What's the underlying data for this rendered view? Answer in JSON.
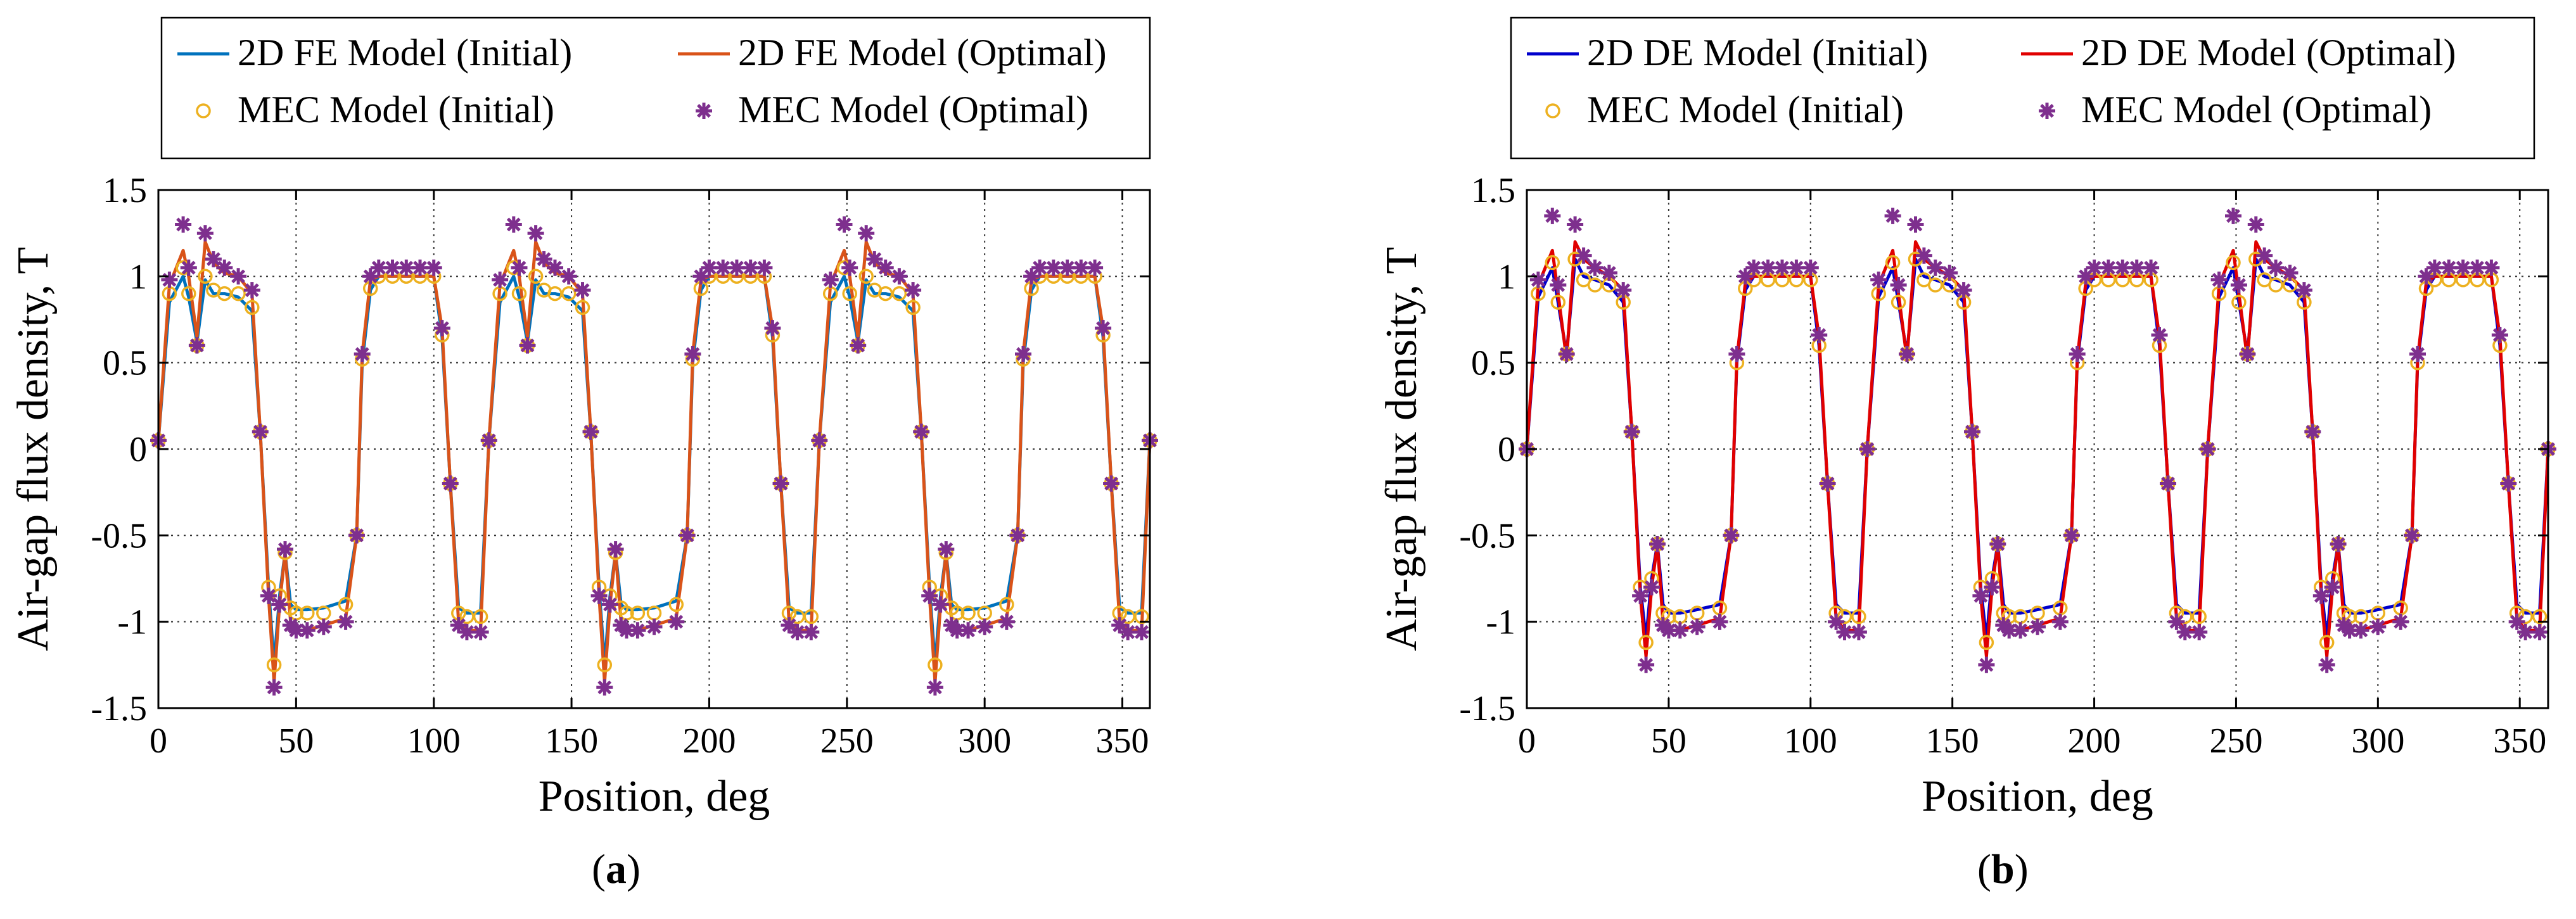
{
  "captions": [
    "a",
    "b"
  ],
  "chart_data": [
    {
      "type": "line",
      "title": "",
      "xlabel": "Position, deg",
      "ylabel": "Air-gap flux density, T",
      "xlim": [
        0,
        360
      ],
      "ylim": [
        -1.5,
        1.5
      ],
      "xticks": [
        0,
        50,
        100,
        150,
        200,
        250,
        300,
        350
      ],
      "yticks": [
        -1.5,
        -1,
        -0.5,
        0,
        0.5,
        1,
        1.5
      ],
      "x_tick_labels": [
        "0",
        "50",
        "100",
        "150",
        "200",
        "250",
        "300",
        "350"
      ],
      "y_tick_labels": [
        "-1.5",
        "-1",
        "-0.5",
        "0",
        "0.5",
        "1",
        "1.5"
      ],
      "grid": "dotted",
      "legend_position": "top",
      "period_deg": 120,
      "x": [
        0,
        4,
        9,
        11,
        14,
        17,
        20,
        24,
        29,
        34,
        37,
        40,
        42,
        44,
        46,
        48,
        50,
        54,
        60,
        68,
        72,
        74,
        77,
        80,
        85,
        90,
        95,
        100,
        103,
        106,
        109,
        112,
        117,
        120
      ],
      "series": [
        {
          "name": "2D FE Model (Initial)",
          "color": "#0072BD",
          "style": "line",
          "values": [
            0.05,
            0.85,
            1.0,
            0.88,
            0.62,
            0.98,
            0.9,
            0.9,
            0.88,
            0.8,
            0.1,
            -0.8,
            -1.25,
            -0.85,
            -0.6,
            -0.9,
            -0.93,
            -0.93,
            -0.92,
            -0.88,
            -0.5,
            0.5,
            0.92,
            1.0,
            1.0,
            1.0,
            1.0,
            1.0,
            0.65,
            -0.2,
            -0.92,
            -0.95,
            -0.95,
            0.05
          ]
        },
        {
          "name": "2D FE Model (Optimal)",
          "color": "#D95319",
          "style": "line",
          "values": [
            0.05,
            0.95,
            1.15,
            1.0,
            0.65,
            1.2,
            1.08,
            1.02,
            1.0,
            0.9,
            0.1,
            -0.85,
            -1.35,
            -0.9,
            -0.6,
            -1.0,
            -1.05,
            -1.05,
            -1.02,
            -0.98,
            -0.5,
            0.55,
            0.98,
            1.0,
            1.0,
            1.0,
            1.0,
            1.0,
            0.7,
            -0.2,
            -1.0,
            -1.05,
            -1.05,
            0.05
          ]
        },
        {
          "name": "MEC Model (Initial)",
          "color": "#EDB120",
          "style": "circle",
          "values": [
            0.05,
            0.9,
            1.05,
            0.9,
            0.6,
            1.0,
            0.92,
            0.9,
            0.9,
            0.82,
            0.1,
            -0.8,
            -1.25,
            -0.85,
            -0.6,
            -0.92,
            -0.95,
            -0.95,
            -0.95,
            -0.9,
            -0.5,
            0.52,
            0.93,
            1.0,
            1.0,
            1.0,
            1.0,
            1.0,
            0.66,
            -0.2,
            -0.95,
            -0.97,
            -0.97,
            0.05
          ]
        },
        {
          "name": "MEC Model (Optimal)",
          "color": "#7E2F8E",
          "style": "star",
          "values": [
            0.05,
            0.98,
            1.3,
            1.05,
            0.6,
            1.25,
            1.1,
            1.05,
            1.0,
            0.92,
            0.1,
            -0.85,
            -1.38,
            -0.9,
            -0.58,
            -1.02,
            -1.05,
            -1.05,
            -1.03,
            -1.0,
            -0.5,
            0.55,
            1.0,
            1.05,
            1.05,
            1.05,
            1.05,
            1.05,
            0.7,
            -0.2,
            -1.02,
            -1.06,
            -1.06,
            0.05
          ]
        }
      ]
    },
    {
      "type": "line",
      "title": "",
      "xlabel": "Position, deg",
      "ylabel": "Air-gap flux density, T",
      "xlim": [
        0,
        360
      ],
      "ylim": [
        -1.5,
        1.5
      ],
      "xticks": [
        0,
        50,
        100,
        150,
        200,
        250,
        300,
        350
      ],
      "yticks": [
        -1.5,
        -1,
        -0.5,
        0,
        0.5,
        1,
        1.5
      ],
      "x_tick_labels": [
        "0",
        "50",
        "100",
        "150",
        "200",
        "250",
        "300",
        "350"
      ],
      "y_tick_labels": [
        "-1.5",
        "-1",
        "-0.5",
        "0",
        "0.5",
        "1",
        "1.5"
      ],
      "grid": "dotted",
      "legend_position": "top",
      "period_deg": 120,
      "x": [
        0,
        4,
        9,
        11,
        14,
        17,
        20,
        24,
        29,
        34,
        37,
        40,
        42,
        44,
        46,
        48,
        50,
        54,
        60,
        68,
        72,
        74,
        77,
        80,
        85,
        90,
        95,
        100,
        103,
        106,
        109,
        112,
        117,
        120
      ],
      "series": [
        {
          "name": "2D DE Model (Initial)",
          "color": "#0000CC",
          "style": "line",
          "values": [
            0.0,
            0.88,
            1.05,
            0.85,
            0.55,
            1.1,
            1.0,
            0.98,
            0.95,
            0.85,
            0.1,
            -0.8,
            -1.1,
            -0.75,
            -0.55,
            -0.9,
            -0.95,
            -0.95,
            -0.93,
            -0.9,
            -0.5,
            0.5,
            0.92,
            1.0,
            1.0,
            1.0,
            1.0,
            1.0,
            0.6,
            -0.2,
            -0.9,
            -0.95,
            -0.95,
            0.0
          ]
        },
        {
          "name": "2D DE Model (Optimal)",
          "color": "#E00000",
          "style": "line",
          "values": [
            0.0,
            0.95,
            1.15,
            0.9,
            0.52,
            1.2,
            1.1,
            1.05,
            1.0,
            0.92,
            0.1,
            -0.85,
            -1.2,
            -0.8,
            -0.55,
            -1.0,
            -1.05,
            -1.05,
            -1.02,
            -0.98,
            -0.5,
            0.52,
            0.96,
            1.0,
            1.0,
            1.0,
            1.0,
            1.0,
            0.65,
            -0.2,
            -0.98,
            -1.05,
            -1.05,
            0.0
          ]
        },
        {
          "name": "MEC Model (Initial)",
          "color": "#EDB120",
          "style": "circle",
          "values": [
            0.0,
            0.9,
            1.08,
            0.85,
            0.55,
            1.1,
            0.98,
            0.95,
            0.95,
            0.85,
            0.1,
            -0.8,
            -1.12,
            -0.75,
            -0.55,
            -0.95,
            -0.97,
            -0.97,
            -0.95,
            -0.92,
            -0.5,
            0.5,
            0.93,
            0.98,
            0.98,
            0.98,
            0.98,
            0.98,
            0.6,
            -0.2,
            -0.95,
            -0.97,
            -0.97,
            0.0
          ]
        },
        {
          "name": "MEC Model (Optimal)",
          "color": "#7E2F8E",
          "style": "star",
          "values": [
            0.0,
            0.98,
            1.35,
            0.95,
            0.55,
            1.3,
            1.12,
            1.05,
            1.02,
            0.92,
            0.1,
            -0.85,
            -1.25,
            -0.8,
            -0.55,
            -1.02,
            -1.05,
            -1.05,
            -1.03,
            -1.0,
            -0.5,
            0.55,
            1.0,
            1.05,
            1.05,
            1.05,
            1.05,
            1.05,
            0.66,
            -0.2,
            -1.0,
            -1.06,
            -1.06,
            0.0
          ]
        }
      ]
    }
  ]
}
